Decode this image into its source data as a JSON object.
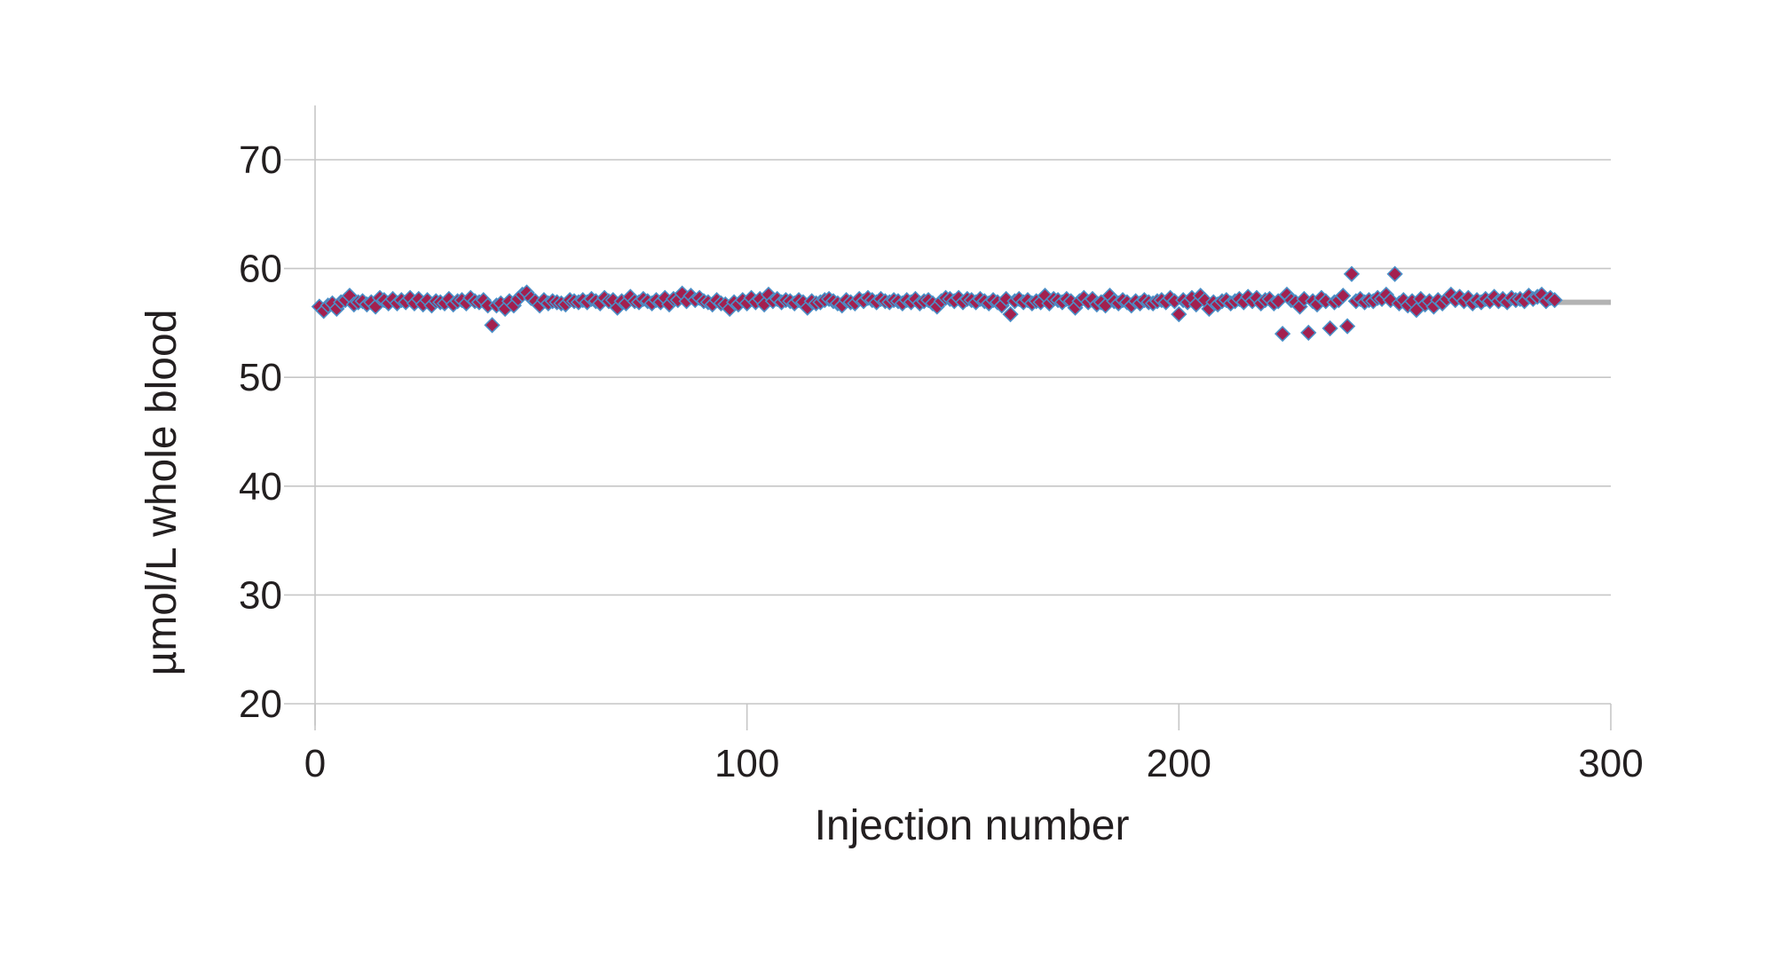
{
  "chart_data": {
    "type": "scatter",
    "xlabel": "Injection number",
    "ylabel": "µmol/L whole blood",
    "xlim": [
      0,
      300
    ],
    "ylim": [
      18,
      75
    ],
    "xticks": [
      0,
      100,
      200,
      300
    ],
    "yticks": [
      20,
      30,
      40,
      50,
      60,
      70
    ],
    "x_tick_labels": [
      "0",
      "100",
      "200",
      "300"
    ],
    "y_tick_labels": [
      "20",
      "30",
      "40",
      "50",
      "60",
      "70"
    ],
    "grid": "horizontal",
    "legend": "none",
    "colors": {
      "marker_fill": "#a3204f",
      "marker_edge": "#4a90c8",
      "reference_line": "#b3b3b3",
      "grid": "#c6c6c6",
      "text": "#231f20"
    },
    "reference_line": {
      "y": 56.9,
      "x_start": 286,
      "x_end": 300
    },
    "series": [
      {
        "values": [
          [
            1,
            56.5
          ],
          [
            2,
            56.1
          ],
          [
            3,
            56.6
          ],
          [
            4,
            56.8
          ],
          [
            5,
            56.3
          ],
          [
            6,
            56.9
          ],
          [
            7,
            57.1
          ],
          [
            8,
            57.5
          ],
          [
            9,
            56.7
          ],
          [
            10,
            56.9
          ],
          [
            11,
            57.0
          ],
          [
            12,
            56.7
          ],
          [
            13,
            56.9
          ],
          [
            14,
            56.5
          ],
          [
            15,
            57.3
          ],
          [
            16,
            57.1
          ],
          [
            17,
            56.8
          ],
          [
            18,
            57.2
          ],
          [
            19,
            56.8
          ],
          [
            20,
            57.1
          ],
          [
            21,
            56.9
          ],
          [
            22,
            57.3
          ],
          [
            23,
            56.8
          ],
          [
            24,
            57.2
          ],
          [
            25,
            56.7
          ],
          [
            26,
            57.1
          ],
          [
            27,
            56.6
          ],
          [
            28,
            57.0
          ],
          [
            29,
            56.9
          ],
          [
            30,
            56.8
          ],
          [
            31,
            57.2
          ],
          [
            32,
            56.7
          ],
          [
            33,
            57.0
          ],
          [
            34,
            57.1
          ],
          [
            35,
            56.8
          ],
          [
            36,
            57.3
          ],
          [
            37,
            57.0
          ],
          [
            38,
            56.9
          ],
          [
            39,
            57.1
          ],
          [
            40,
            56.6
          ],
          [
            41,
            54.8
          ],
          [
            42,
            56.6
          ],
          [
            43,
            56.8
          ],
          [
            44,
            56.3
          ],
          [
            45,
            57.0
          ],
          [
            46,
            56.6
          ],
          [
            47,
            57.2
          ],
          [
            48,
            57.6
          ],
          [
            49,
            57.8
          ],
          [
            50,
            57.3
          ],
          [
            51,
            57.0
          ],
          [
            52,
            56.6
          ],
          [
            53,
            57.1
          ],
          [
            54,
            56.8
          ],
          [
            55,
            57.0
          ],
          [
            56,
            56.9
          ],
          [
            57,
            56.8
          ],
          [
            58,
            56.7
          ],
          [
            59,
            57.1
          ],
          [
            60,
            57.0
          ],
          [
            61,
            56.9
          ],
          [
            62,
            57.1
          ],
          [
            63,
            56.9
          ],
          [
            64,
            57.2
          ],
          [
            65,
            57.0
          ],
          [
            66,
            56.8
          ],
          [
            67,
            57.3
          ],
          [
            68,
            57.0
          ],
          [
            69,
            57.1
          ],
          [
            70,
            56.4
          ],
          [
            71,
            57.0
          ],
          [
            72,
            56.8
          ],
          [
            73,
            57.4
          ],
          [
            74,
            57.0
          ],
          [
            75,
            56.9
          ],
          [
            76,
            57.2
          ],
          [
            77,
            57.0
          ],
          [
            78,
            56.8
          ],
          [
            79,
            57.1
          ],
          [
            80,
            56.9
          ],
          [
            81,
            57.3
          ],
          [
            82,
            56.7
          ],
          [
            83,
            57.2
          ],
          [
            84,
            57.1
          ],
          [
            85,
            57.7
          ],
          [
            86,
            57.0
          ],
          [
            87,
            57.5
          ],
          [
            88,
            57.1
          ],
          [
            89,
            57.3
          ],
          [
            90,
            57.0
          ],
          [
            91,
            56.9
          ],
          [
            92,
            56.7
          ],
          [
            93,
            57.1
          ],
          [
            94,
            56.8
          ],
          [
            95,
            56.7
          ],
          [
            96,
            56.3
          ],
          [
            97,
            56.9
          ],
          [
            98,
            56.7
          ],
          [
            99,
            57.1
          ],
          [
            100,
            56.8
          ],
          [
            101,
            57.3
          ],
          [
            102,
            56.9
          ],
          [
            103,
            57.2
          ],
          [
            104,
            56.7
          ],
          [
            105,
            57.6
          ],
          [
            106,
            57.0
          ],
          [
            107,
            57.2
          ],
          [
            108,
            56.9
          ],
          [
            109,
            57.1
          ],
          [
            110,
            57.0
          ],
          [
            111,
            56.8
          ],
          [
            112,
            57.1
          ],
          [
            113,
            56.9
          ],
          [
            114,
            56.4
          ],
          [
            115,
            57.0
          ],
          [
            116,
            56.8
          ],
          [
            117,
            56.9
          ],
          [
            118,
            57.1
          ],
          [
            119,
            57.2
          ],
          [
            120,
            57.0
          ],
          [
            121,
            56.8
          ],
          [
            122,
            56.6
          ],
          [
            123,
            57.1
          ],
          [
            124,
            56.9
          ],
          [
            125,
            56.8
          ],
          [
            126,
            57.2
          ],
          [
            127,
            57.0
          ],
          [
            128,
            57.3
          ],
          [
            129,
            57.1
          ],
          [
            130,
            56.9
          ],
          [
            131,
            57.2
          ],
          [
            132,
            57.0
          ],
          [
            133,
            56.9
          ],
          [
            134,
            57.1
          ],
          [
            135,
            57.0
          ],
          [
            136,
            56.8
          ],
          [
            137,
            57.1
          ],
          [
            138,
            56.9
          ],
          [
            139,
            57.2
          ],
          [
            140,
            56.8
          ],
          [
            141,
            57.0
          ],
          [
            142,
            57.1
          ],
          [
            143,
            56.8
          ],
          [
            144,
            56.5
          ],
          [
            145,
            57.0
          ],
          [
            146,
            57.3
          ],
          [
            147,
            57.2
          ],
          [
            148,
            57.0
          ],
          [
            149,
            57.3
          ],
          [
            150,
            56.9
          ],
          [
            151,
            57.2
          ],
          [
            152,
            57.1
          ],
          [
            153,
            56.9
          ],
          [
            154,
            57.2
          ],
          [
            155,
            57.0
          ],
          [
            156,
            56.8
          ],
          [
            157,
            57.1
          ],
          [
            158,
            56.9
          ],
          [
            159,
            56.6
          ],
          [
            160,
            57.2
          ],
          [
            161,
            55.8
          ],
          [
            162,
            57.0
          ],
          [
            163,
            57.2
          ],
          [
            164,
            56.9
          ],
          [
            165,
            57.1
          ],
          [
            166,
            56.8
          ],
          [
            167,
            57.0
          ],
          [
            168,
            56.9
          ],
          [
            169,
            57.5
          ],
          [
            170,
            56.8
          ],
          [
            171,
            57.2
          ],
          [
            172,
            57.1
          ],
          [
            173,
            56.9
          ],
          [
            174,
            57.2
          ],
          [
            175,
            57.0
          ],
          [
            176,
            56.4
          ],
          [
            177,
            57.0
          ],
          [
            178,
            57.3
          ],
          [
            179,
            56.9
          ],
          [
            180,
            57.2
          ],
          [
            181,
            56.7
          ],
          [
            182,
            56.9
          ],
          [
            183,
            56.6
          ],
          [
            184,
            57.5
          ],
          [
            185,
            57.0
          ],
          [
            186,
            56.8
          ],
          [
            187,
            57.1
          ],
          [
            188,
            56.9
          ],
          [
            189,
            56.6
          ],
          [
            190,
            57.0
          ],
          [
            191,
            56.8
          ],
          [
            192,
            57.1
          ],
          [
            193,
            56.9
          ],
          [
            194,
            56.8
          ],
          [
            195,
            57.0
          ],
          [
            196,
            57.1
          ],
          [
            197,
            56.9
          ],
          [
            198,
            57.3
          ],
          [
            199,
            57.0
          ],
          [
            200,
            55.8
          ],
          [
            201,
            57.1
          ],
          [
            202,
            56.9
          ],
          [
            203,
            57.3
          ],
          [
            204,
            56.7
          ],
          [
            205,
            57.5
          ],
          [
            206,
            57.1
          ],
          [
            207,
            56.3
          ],
          [
            208,
            56.9
          ],
          [
            209,
            56.7
          ],
          [
            210,
            57.0
          ],
          [
            211,
            57.1
          ],
          [
            212,
            56.8
          ],
          [
            213,
            57.0
          ],
          [
            214,
            57.2
          ],
          [
            215,
            56.9
          ],
          [
            216,
            57.4
          ],
          [
            217,
            57.0
          ],
          [
            218,
            57.3
          ],
          [
            219,
            56.8
          ],
          [
            220,
            57.1
          ],
          [
            221,
            57.2
          ],
          [
            222,
            56.8
          ],
          [
            223,
            57.0
          ],
          [
            224,
            54.0
          ],
          [
            225,
            57.6
          ],
          [
            226,
            57.1
          ],
          [
            227,
            56.9
          ],
          [
            228,
            56.5
          ],
          [
            229,
            57.2
          ],
          [
            230,
            54.1
          ],
          [
            231,
            57.0
          ],
          [
            232,
            56.7
          ],
          [
            233,
            57.3
          ],
          [
            234,
            57.0
          ],
          [
            235,
            54.5
          ],
          [
            236,
            56.9
          ],
          [
            237,
            57.1
          ],
          [
            238,
            57.5
          ],
          [
            239,
            54.7
          ],
          [
            240,
            59.5
          ],
          [
            241,
            57.0
          ],
          [
            242,
            57.2
          ],
          [
            243,
            56.9
          ],
          [
            244,
            57.1
          ],
          [
            245,
            57.0
          ],
          [
            246,
            57.3
          ],
          [
            247,
            57.2
          ],
          [
            248,
            57.6
          ],
          [
            249,
            57.1
          ],
          [
            250,
            59.5
          ],
          [
            251,
            56.8
          ],
          [
            252,
            57.1
          ],
          [
            253,
            56.6
          ],
          [
            254,
            57.0
          ],
          [
            255,
            56.2
          ],
          [
            256,
            57.2
          ],
          [
            257,
            56.7
          ],
          [
            258,
            57.0
          ],
          [
            259,
            56.5
          ],
          [
            260,
            57.1
          ],
          [
            261,
            56.8
          ],
          [
            262,
            57.2
          ],
          [
            263,
            57.6
          ],
          [
            264,
            57.1
          ],
          [
            265,
            57.4
          ],
          [
            266,
            57.0
          ],
          [
            267,
            57.3
          ],
          [
            268,
            56.8
          ],
          [
            269,
            57.1
          ],
          [
            270,
            56.9
          ],
          [
            271,
            57.2
          ],
          [
            272,
            57.0
          ],
          [
            273,
            57.4
          ],
          [
            274,
            57.0
          ],
          [
            275,
            57.2
          ],
          [
            276,
            56.9
          ],
          [
            277,
            57.3
          ],
          [
            278,
            57.1
          ],
          [
            279,
            57.2
          ],
          [
            280,
            57.0
          ],
          [
            281,
            57.5
          ],
          [
            282,
            57.2
          ],
          [
            283,
            57.4
          ],
          [
            284,
            57.6
          ],
          [
            285,
            57.0
          ],
          [
            286,
            57.3
          ],
          [
            287,
            57.1
          ]
        ]
      }
    ]
  }
}
